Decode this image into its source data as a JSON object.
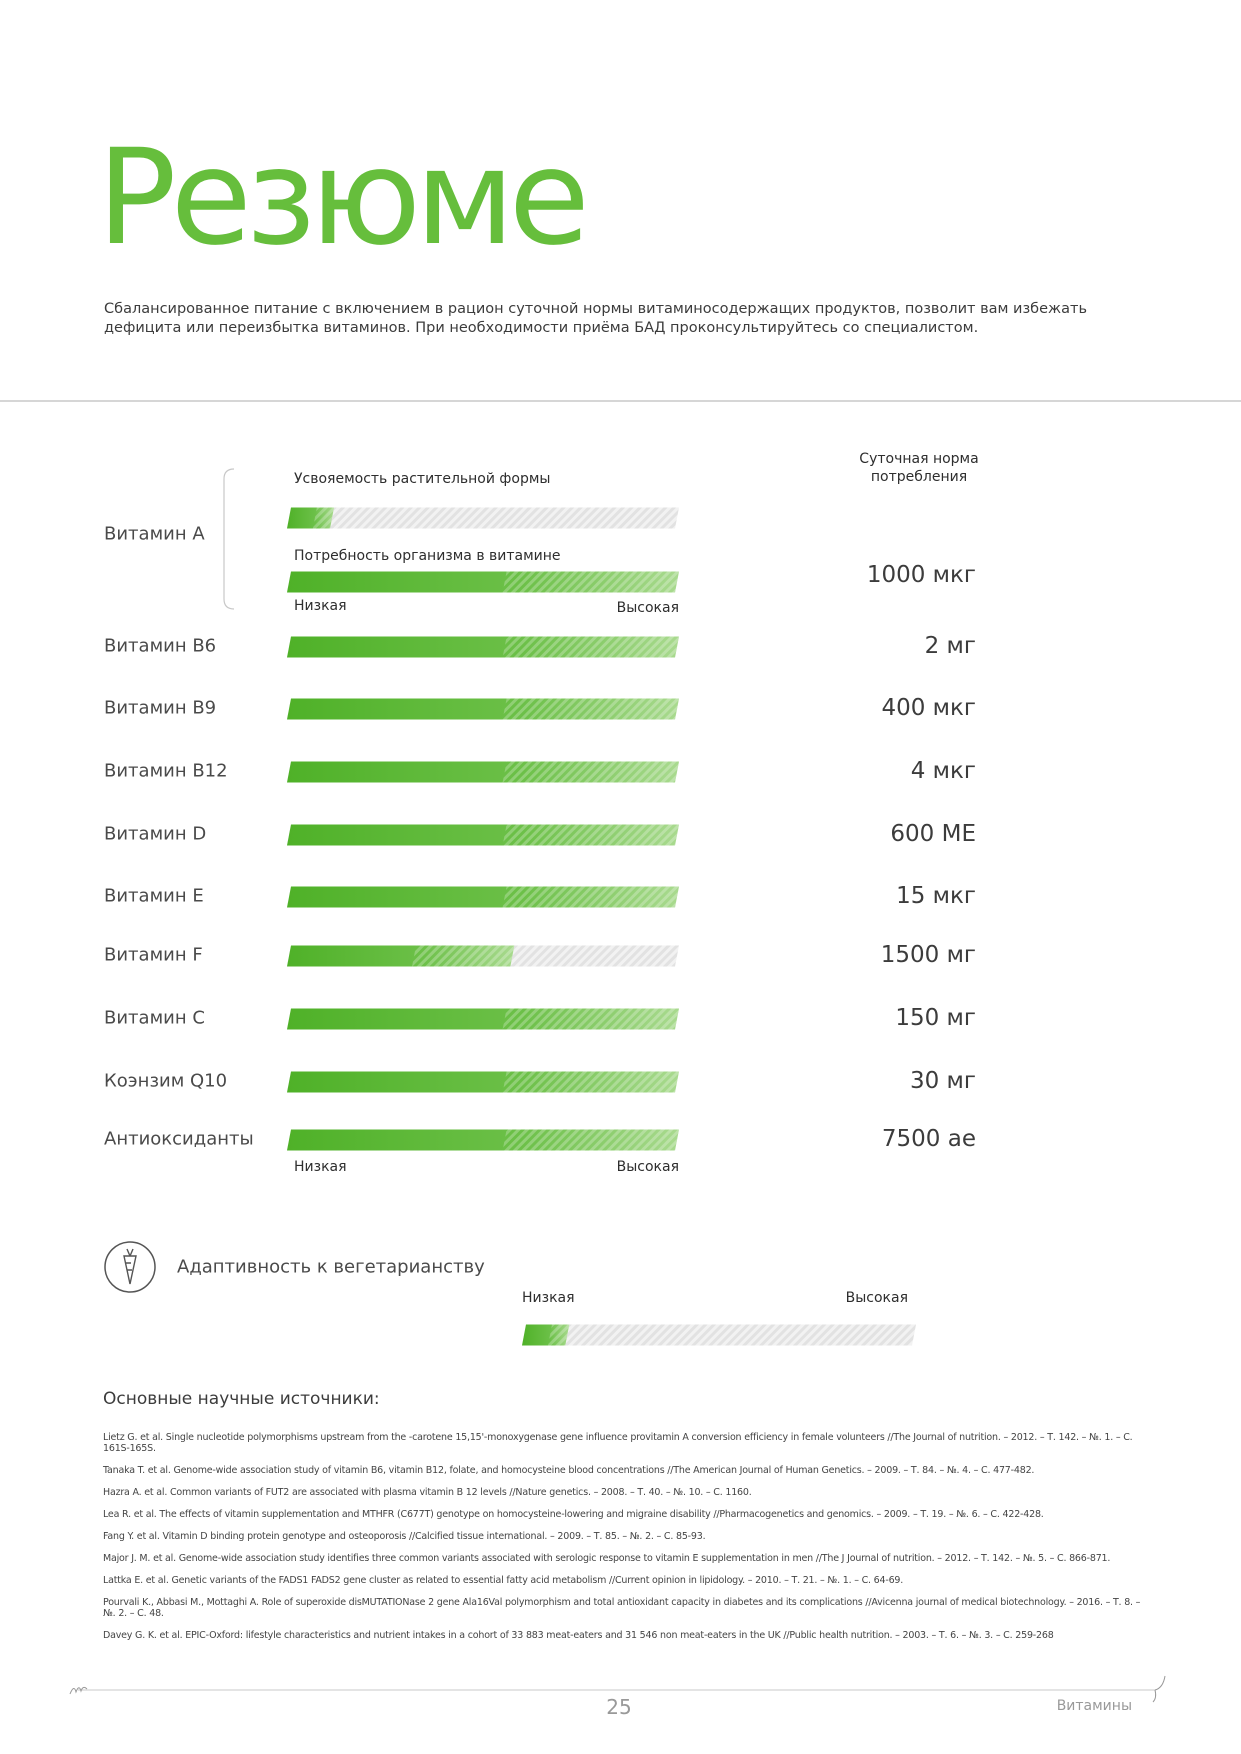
{
  "header": {
    "title": "Резюме",
    "intro": "Сбалансированное питание с включением в рацион суточной нормы витаминосодержащих продуктов, позволит вам избежать дефицита или переизбытка витаминов. При необходимости приёма БАД проконсультируйтесь со специалистом."
  },
  "table": {
    "column_header": "Суточная норма потребления",
    "vitamin_a": {
      "label": "Витамин А",
      "absorption_label": "Усвояемость растительной формы",
      "absorption_level": 0.12,
      "need_label": "Потребность организма в витамине",
      "need_level": 1,
      "norm": "1000 мкг",
      "low": "Низкая",
      "high": "Высокая"
    },
    "rows": [
      {
        "label": "Витамин В6",
        "level": 1,
        "norm": "2 мг"
      },
      {
        "label": "Витамин В9",
        "level": 1,
        "norm": "400 мкг"
      },
      {
        "label": "Витамин В12",
        "level": 1,
        "norm": "4 мкг"
      },
      {
        "label": "Витамин D",
        "level": 1,
        "norm": "600 МЕ"
      },
      {
        "label": "Витамин Е",
        "level": 1,
        "norm": "15 мкг"
      },
      {
        "label": "Витамин F",
        "level": 0.58,
        "norm": "1500 мг"
      },
      {
        "label": "Витамин С",
        "level": 1,
        "norm": "150 мг"
      },
      {
        "label": "Коэнзим Q10",
        "level": 1,
        "norm": "30 мг"
      },
      {
        "label": "Антиоксиданты",
        "level": 1,
        "norm": "7500 ае"
      }
    ],
    "low": "Низкая",
    "high": "Высокая"
  },
  "vegetarian": {
    "label": "Адаптивность к вегетарианству",
    "low": "Низкая",
    "high": "Высокая",
    "level": 0.12
  },
  "sources": {
    "title": "Основные научные источники:",
    "items": [
      "Lietz G. et al. Single nucleotide polymorphisms upstream from the -carotene 15,15'-monoxygenase gene influence provitamin A conversion efficiency in female volunteers //The Journal of nutrition. – 2012. – Т. 142. – №. 1. – С. 161S-165S.",
      "Tanaka T. et al. Genome-wide association study of vitamin B6, vitamin B12, folate, and homocysteine blood concentrations //The American Journal of Human Genetics. – 2009. – Т. 84. – №. 4. – С. 477-482.",
      "Hazra A. et al. Common variants of FUT2 are associated with plasma vitamin B 12 levels //Nature genetics. – 2008. – Т. 40. – №. 10. – С. 1160.",
      "Lea R. et al. The effects of vitamin supplementation and MTHFR (C677T) genotype on homocysteine-lowering and migraine disability //Pharmacogenetics and genomics. – 2009. – Т. 19. – №. 6. – С. 422-428.",
      "Fang Y. et al. Vitamin D binding protein genotype and osteoporosis //Calcified tissue international. – 2009. – Т. 85. – №. 2. – С. 85-93.",
      "Major J. M. et al. Genome-wide association study identifies three common variants associated with serologic response to vitamin E supplementation in men //The J Journal of nutrition. – 2012. – Т. 142. – №. 5. – С. 866-871.",
      "Lattka E. et al. Genetic variants of the FADS1 FADS2 gene cluster as related to essential fatty acid metabolism //Current opinion in lipidology. – 2010. – Т. 21. – №. 1. – С. 64-69.",
      "Pourvali K., Abbasi M., Mottaghi A. Role of superoxide disMUTATIONase 2 gene Ala16Val polymorphism and total antioxidant capacity in diabetes and its complications //Avicenna journal of medical biotechnology. – 2016. – Т. 8. – №. 2. – С. 48.",
      "Davey G. K. et al. EPIC-Oxford: lifestyle characteristics and nutrient intakes in a cohort of 33 883 meat-eaters and 31 546 non meat-eaters in the UK //Public health nutrition. – 2003. – Т. 6. – №. 3. – С. 259-268"
    ]
  },
  "footer": {
    "page": "25",
    "section": "Витамины"
  }
}
